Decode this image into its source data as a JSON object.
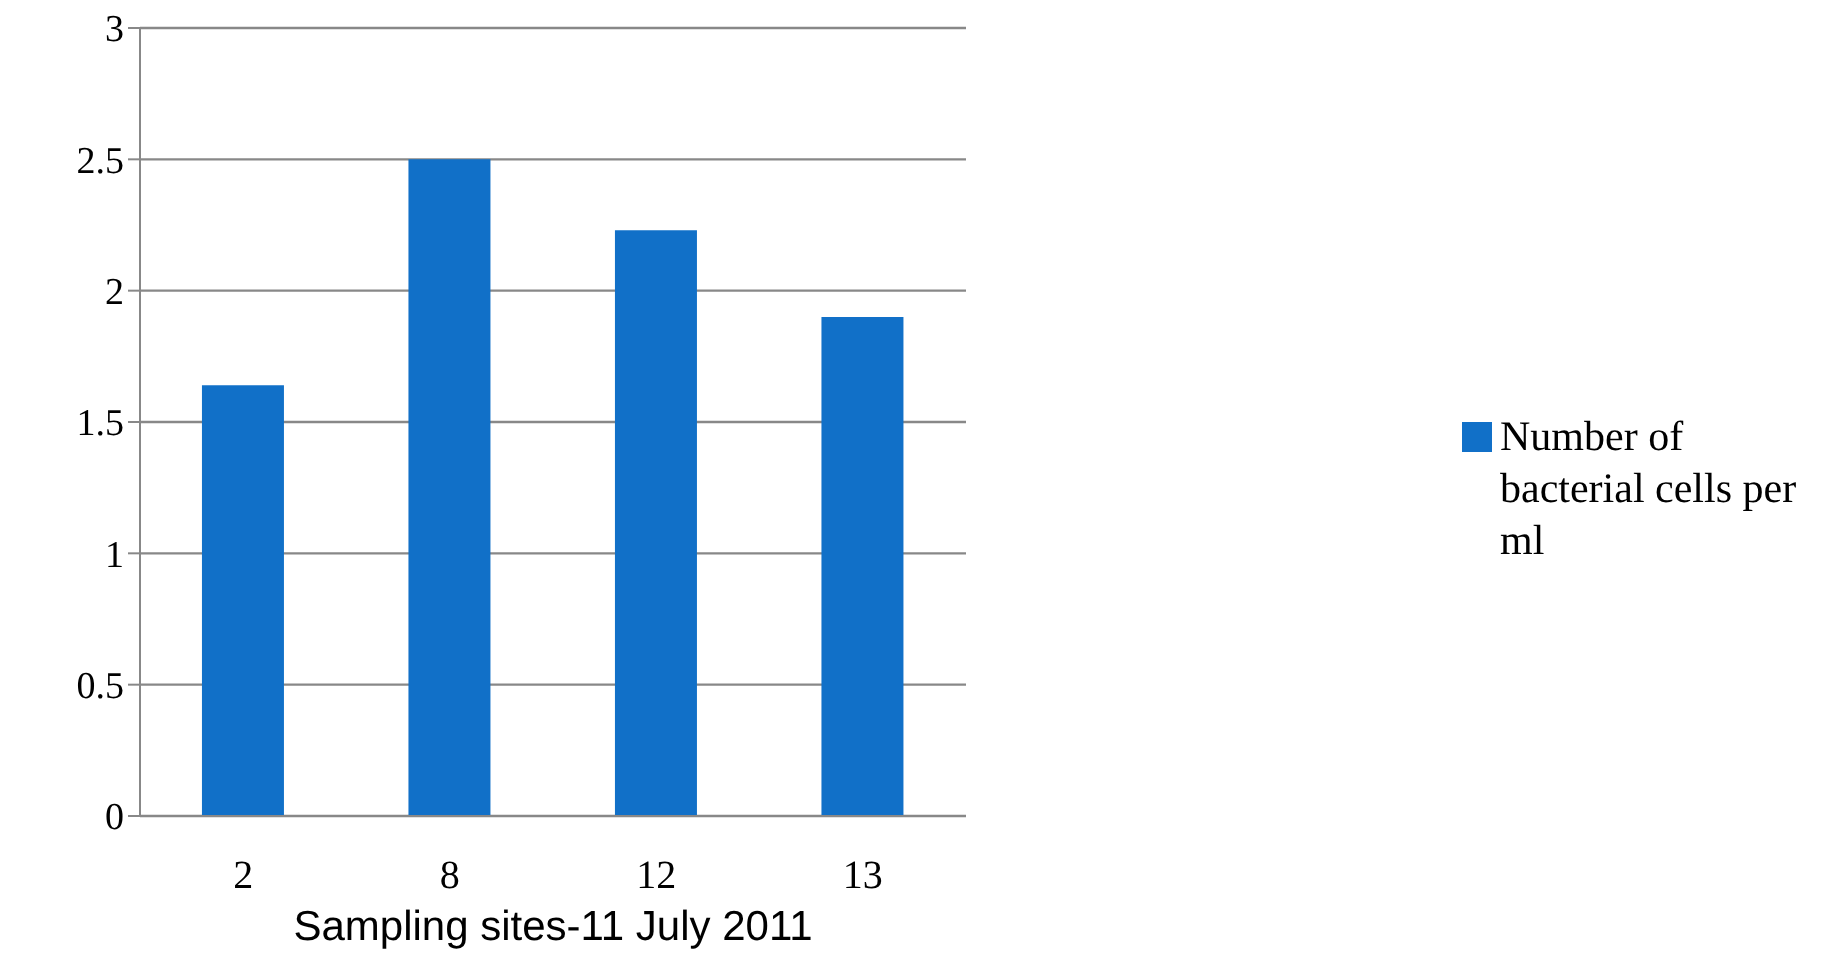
{
  "chart_data": {
    "type": "bar",
    "xlabel": "Sampling sites-11 July 2011",
    "categories": [
      "2",
      "8",
      "12",
      "13"
    ],
    "series": [
      {
        "name": "Number of bacterial cells per ml",
        "color": "#1170c8",
        "values": [
          1.64,
          2.5,
          2.23,
          1.9
        ]
      }
    ],
    "ylim": [
      0,
      3
    ],
    "yticks": [
      0,
      0.5,
      1,
      1.5,
      2,
      2.5,
      3
    ],
    "grid": "y",
    "legend": "right"
  }
}
